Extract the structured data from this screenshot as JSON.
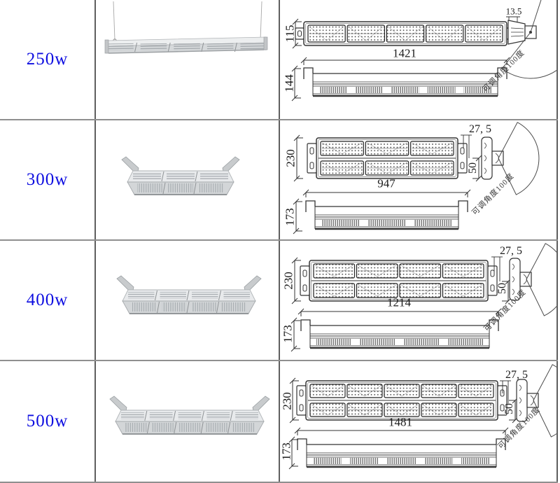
{
  "angle_note": "可调角度100度",
  "colors": {
    "label_blue": "#0d0de0",
    "line": "#333333",
    "table_border": "#8f8f8f"
  },
  "rows": [
    {
      "label": "250w",
      "drawing": {
        "length": "1421",
        "width": "115",
        "depth": "144",
        "bracket_offset": "13.5",
        "module_rows": 1,
        "module_cols": 5
      },
      "product": {
        "mount": "hanging-wires",
        "sections": 5
      }
    },
    {
      "label": "300w",
      "drawing": {
        "length": "947",
        "width": "230",
        "depth": "173",
        "bracket_offset": "27, 5",
        "slot_spacing": "50",
        "module_rows": 2,
        "module_cols": 3
      },
      "product": {
        "mount": "end-brackets",
        "sections": 3
      }
    },
    {
      "label": "400w",
      "drawing": {
        "length": "1214",
        "width": "230",
        "depth": "173",
        "bracket_offset": "27, 5",
        "slot_spacing": "50",
        "module_rows": 2,
        "module_cols": 4
      },
      "product": {
        "mount": "end-brackets",
        "sections": 4
      }
    },
    {
      "label": "500w",
      "drawing": {
        "length": "1481",
        "width": "230",
        "depth": "173",
        "bracket_offset": "27, 5",
        "slot_spacing": "50",
        "module_rows": 2,
        "module_cols": 5
      },
      "product": {
        "mount": "end-brackets",
        "sections": 5
      }
    }
  ]
}
